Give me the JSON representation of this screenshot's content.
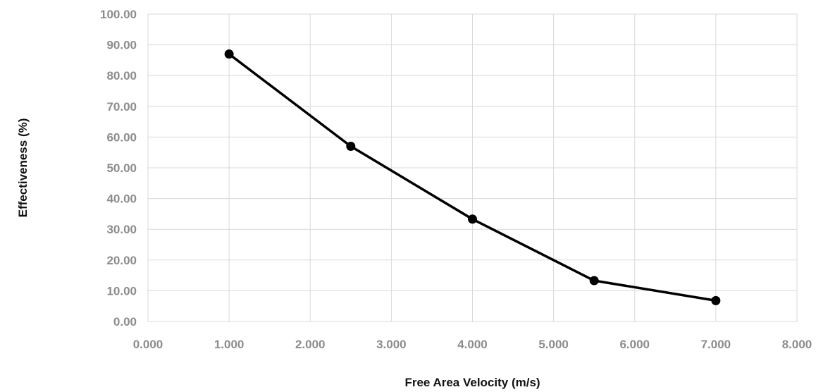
{
  "chart_data": {
    "type": "line",
    "title": "",
    "xlabel": "Free Area Velocity (m/s)",
    "ylabel": "Effectiveness (%)",
    "xlim": [
      0,
      8
    ],
    "ylim": [
      0,
      100
    ],
    "x_ticks": [
      0,
      1,
      2,
      3,
      4,
      5,
      6,
      7,
      8
    ],
    "y_ticks": [
      0,
      10,
      20,
      30,
      40,
      50,
      60,
      70,
      80,
      90,
      100
    ],
    "x_tick_labels": [
      "0.000",
      "1.000",
      "2.000",
      "3.000",
      "4.000",
      "5.000",
      "6.000",
      "7.000",
      "8.000"
    ],
    "y_tick_labels": [
      "0.00",
      "10.00",
      "20.00",
      "30.00",
      "40.00",
      "50.00",
      "60.00",
      "70.00",
      "80.00",
      "90.00",
      "100.00"
    ],
    "grid": true,
    "legend": "none",
    "series": [
      {
        "color": "#000000",
        "marker": "circle",
        "points": [
          {
            "x": 1.0,
            "y": 87.0
          },
          {
            "x": 2.5,
            "y": 57.0
          },
          {
            "x": 4.0,
            "y": 33.3
          },
          {
            "x": 5.5,
            "y": 13.3
          },
          {
            "x": 7.0,
            "y": 6.8
          }
        ]
      }
    ]
  }
}
